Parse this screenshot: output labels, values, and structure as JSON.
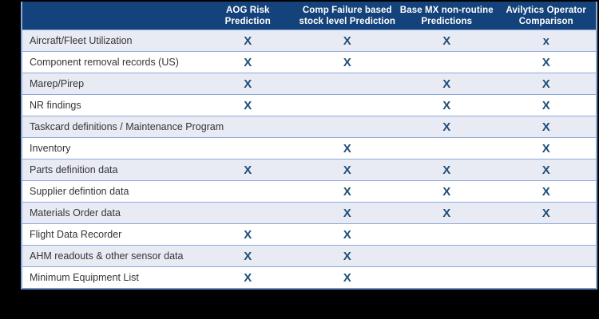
{
  "colors": {
    "page_background": "#000000",
    "header_background": "#14427A",
    "header_text": "#FFFFFF",
    "mark_color": "#1F4E79",
    "row_alt_background": "#E9EBF4",
    "row_background": "#FFFFFF",
    "row_border": "#8EAADB"
  },
  "table": {
    "corner_label": "",
    "columns": [
      {
        "label_lines": [
          "AOG Risk",
          "Prediction"
        ]
      },
      {
        "label_lines": [
          "Comp Failure based",
          "stock level Prediction"
        ]
      },
      {
        "label_lines": [
          "Base MX non-routine",
          "Predictions"
        ]
      },
      {
        "label_lines": [
          "Avilytics Operator",
          "Comparison"
        ]
      }
    ],
    "rows": [
      {
        "label": "Aircraft/Fleet Utilization",
        "marks": [
          "X",
          "X",
          "X",
          "x"
        ]
      },
      {
        "label": "Component removal records (US)",
        "marks": [
          "X",
          "X",
          "",
          "X"
        ]
      },
      {
        "label": "Marep/Pirep",
        "marks": [
          "X",
          "",
          "X",
          "X"
        ]
      },
      {
        "label": "NR findings",
        "marks": [
          "X",
          "",
          "X",
          "X"
        ]
      },
      {
        "label": "Taskcard definitions / Maintenance Program",
        "marks": [
          "",
          "",
          "X",
          "X"
        ]
      },
      {
        "label": "Inventory",
        "marks": [
          "",
          "X",
          "",
          "X"
        ]
      },
      {
        "label": "Parts definition data",
        "marks": [
          "X",
          "X",
          "X",
          "X"
        ]
      },
      {
        "label": "Supplier defintion data",
        "marks": [
          "",
          "X",
          "X",
          "X"
        ]
      },
      {
        "label": "Materials Order data",
        "marks": [
          "",
          "X",
          "X",
          "X"
        ]
      },
      {
        "label": "Flight Data Recorder",
        "marks": [
          "X",
          "X",
          "",
          ""
        ]
      },
      {
        "label": "AHM readouts & other sensor data",
        "marks": [
          "X",
          "X",
          "",
          ""
        ]
      },
      {
        "label": "Minimum Equipment List",
        "marks": [
          "X",
          "X",
          "",
          ""
        ]
      }
    ]
  }
}
